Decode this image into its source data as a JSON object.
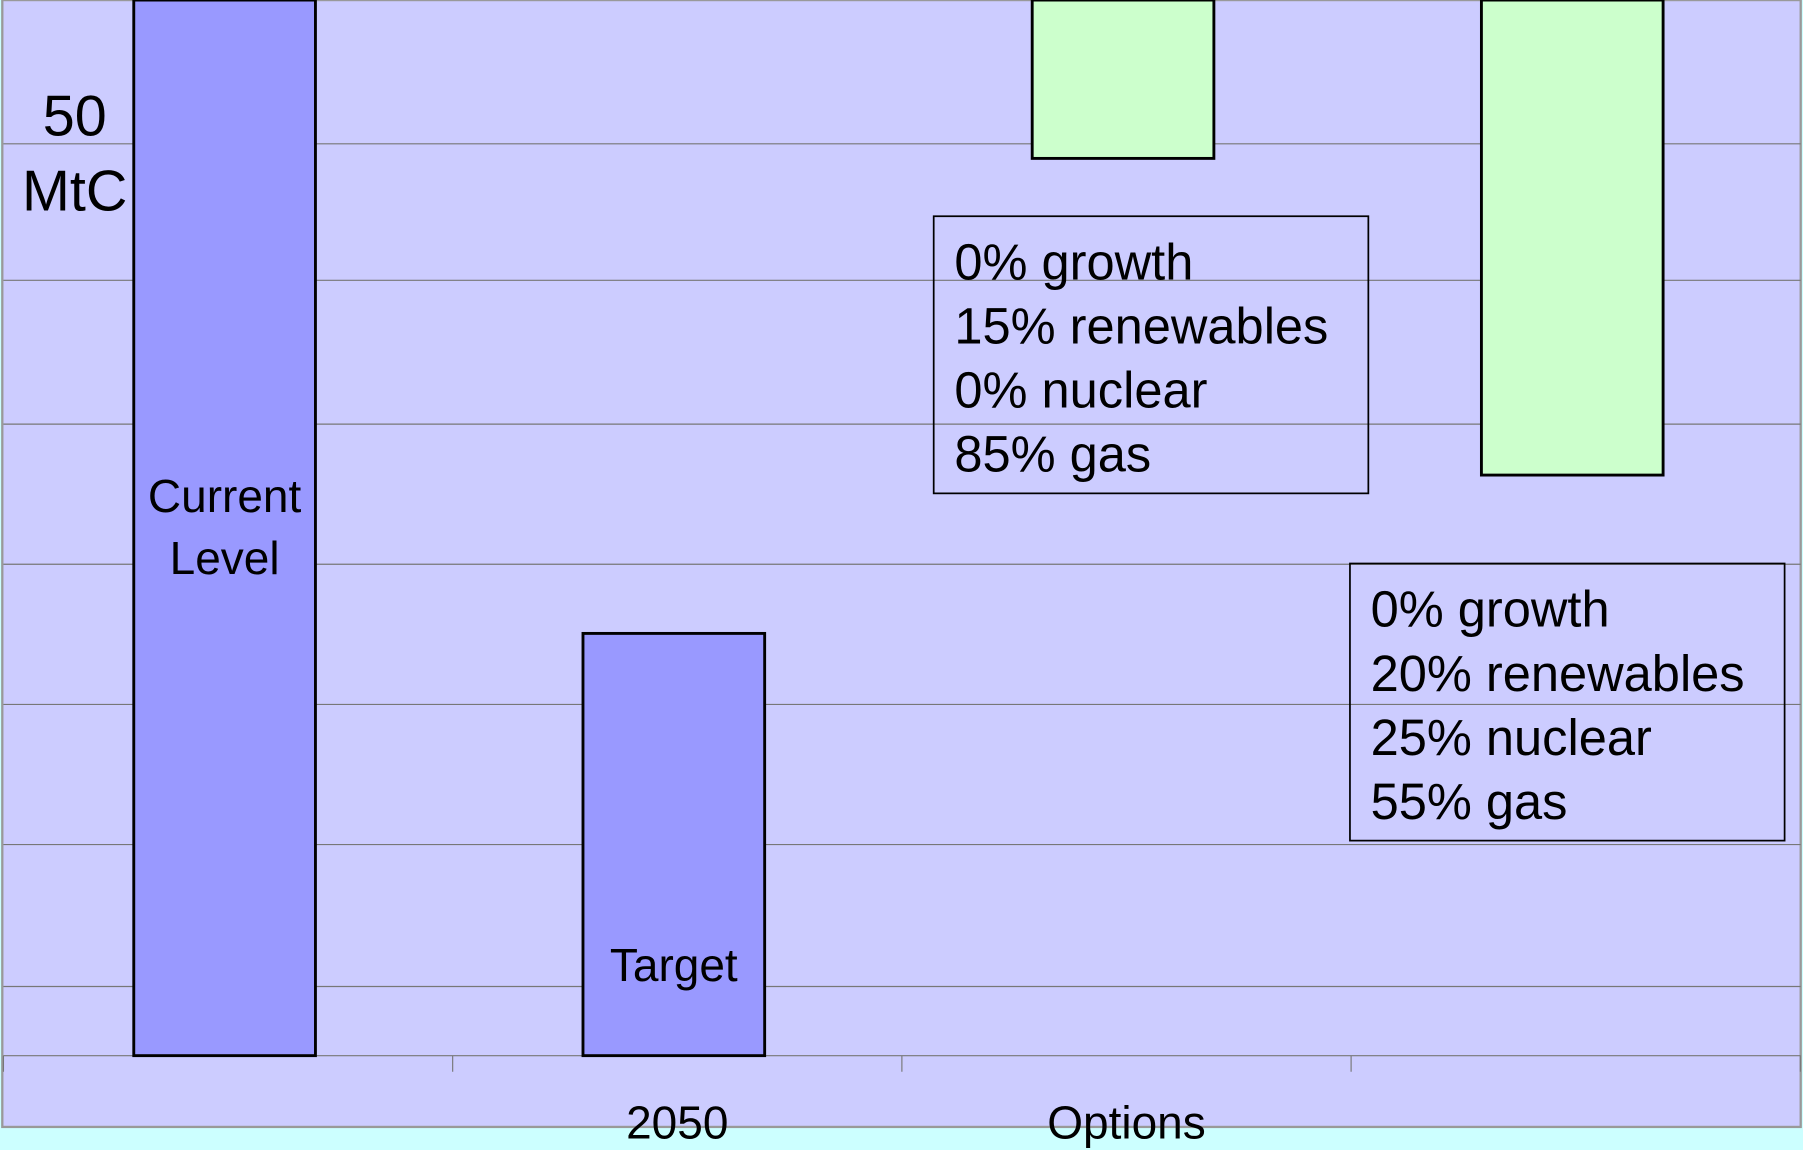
{
  "chart_data": {
    "type": "bar",
    "y_label": [
      "50",
      "MtC"
    ],
    "categories": [
      null,
      "2050",
      "Options",
      null
    ],
    "ylim": [
      0,
      58
    ],
    "gridlines": [
      3.8,
      11.6,
      19.3,
      27.0,
      34.7,
      42.6,
      50.1
    ],
    "grid": true,
    "bars": [
      {
        "label": [
          "Current",
          "Level"
        ],
        "color": "#9999ff",
        "low": 0,
        "high": 58
      },
      {
        "label": [
          "Target"
        ],
        "color": "#9999ff",
        "low": 0,
        "high": 23.2
      },
      {
        "color": "#ccffcc",
        "low": 49.3,
        "high": 58
      },
      {
        "color": "#ccffcc",
        "low": 31.9,
        "high": 58
      }
    ],
    "annotations": [
      {
        "lines": [
          "0% growth",
          "15% renewables",
          "0% nuclear",
          "85% gas"
        ]
      },
      {
        "lines": [
          "0% growth",
          "20% renewables",
          "25% nuclear",
          "55% gas"
        ]
      }
    ]
  }
}
